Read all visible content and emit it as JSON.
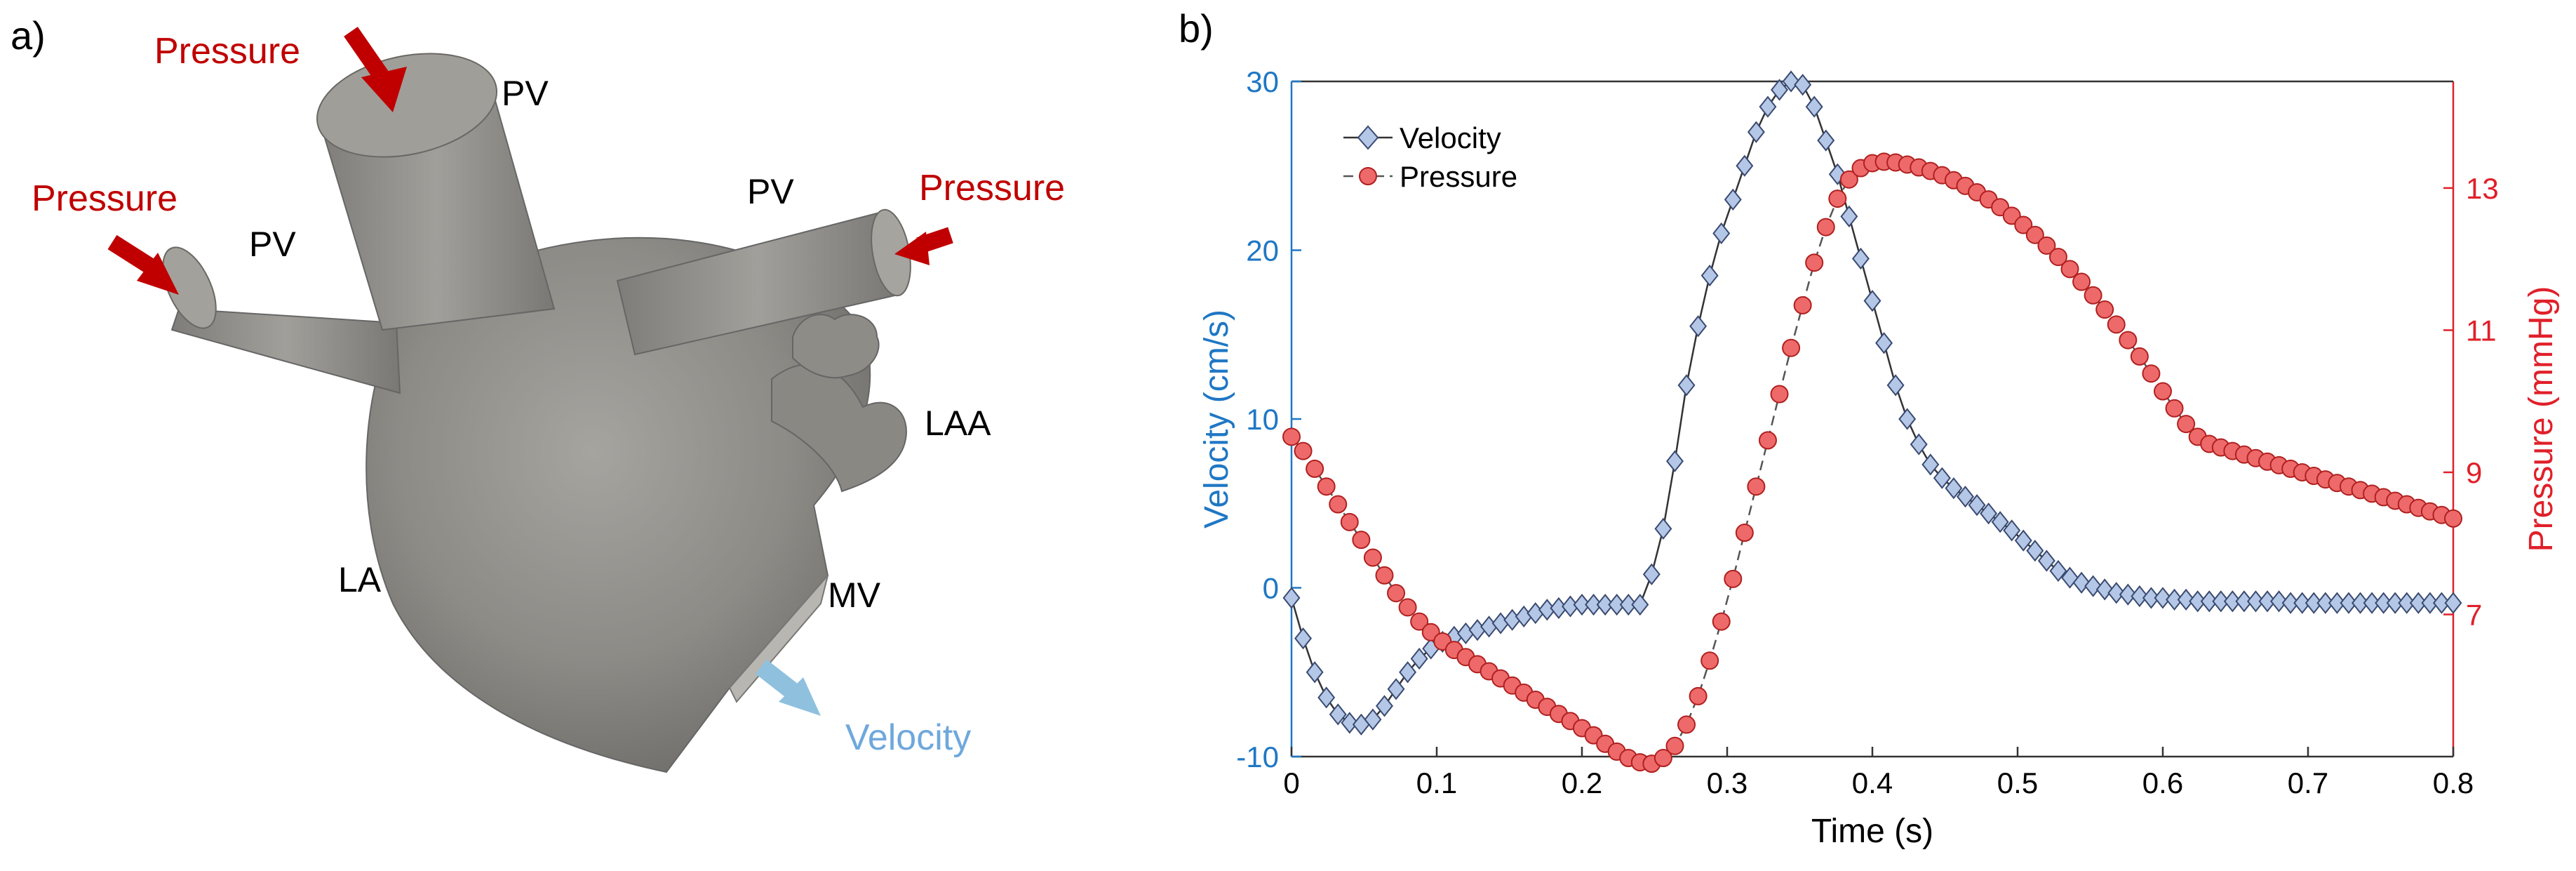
{
  "panels": {
    "a": {
      "label": "a)",
      "annotations": {
        "pressure_top": "Pressure",
        "pressure_left": "Pressure",
        "pressure_right": "Pressure",
        "pv_top": "PV",
        "pv_left": "PV",
        "pv_right": "PV",
        "laa": "LAA",
        "la": "LA",
        "mv": "MV",
        "velocity": "Velocity"
      }
    },
    "b": {
      "label": "b)"
    }
  },
  "colors": {
    "pressure_annotation": "#c00000",
    "velocity_annotation": "#6fa8dc",
    "velocity_axis": "#1f77c4",
    "pressure_axis": "#e0202a",
    "velocity_marker_fill": "#b4c7e7",
    "velocity_marker_stroke": "#3a4a70",
    "pressure_marker_fill": "#ee6a6a",
    "pressure_marker_stroke": "#b02020",
    "tissue": "#8c8a85",
    "tissue_light": "#a8a6a1",
    "arrow_red": "#c00000",
    "arrow_blue": "#8fc1de"
  },
  "chart_data": {
    "type": "line",
    "xlabel": "Time (s)",
    "ylabel_left": "Velocity (cm/s)",
    "ylabel_right": "Pressure (mmHg)",
    "xlim": [
      0,
      0.8
    ],
    "ylim_left": [
      -10,
      30
    ],
    "ylim_right": [
      5,
      14.5
    ],
    "x_ticks": [
      "0",
      "0.1",
      "0.2",
      "0.3",
      "0.4",
      "0.5",
      "0.6",
      "0.7",
      "0.8"
    ],
    "y_ticks_left": [
      "-10",
      "0",
      "10",
      "20",
      "30"
    ],
    "y_ticks_right": [
      "7",
      "9",
      "11",
      "13"
    ],
    "legend": {
      "position": "top-left",
      "entries": [
        "Velocity",
        "Pressure"
      ]
    },
    "series": [
      {
        "name": "Velocity",
        "axis": "left",
        "marker": "diamond",
        "line": "solid",
        "x": [
          0.0,
          0.008,
          0.016,
          0.024,
          0.032,
          0.04,
          0.048,
          0.056,
          0.064,
          0.072,
          0.08,
          0.088,
          0.096,
          0.104,
          0.112,
          0.12,
          0.128,
          0.136,
          0.144,
          0.152,
          0.16,
          0.168,
          0.176,
          0.184,
          0.192,
          0.2,
          0.208,
          0.216,
          0.224,
          0.232,
          0.24,
          0.248,
          0.256,
          0.264,
          0.272,
          0.28,
          0.288,
          0.296,
          0.304,
          0.312,
          0.32,
          0.328,
          0.336,
          0.344,
          0.352,
          0.36,
          0.368,
          0.376,
          0.384,
          0.392,
          0.4,
          0.408,
          0.416,
          0.424,
          0.432,
          0.44,
          0.448,
          0.456,
          0.464,
          0.472,
          0.48,
          0.488,
          0.496,
          0.504,
          0.512,
          0.52,
          0.528,
          0.536,
          0.544,
          0.552,
          0.56,
          0.568,
          0.576,
          0.584,
          0.592,
          0.6,
          0.608,
          0.616,
          0.624,
          0.632,
          0.64,
          0.648,
          0.656,
          0.664,
          0.672,
          0.68,
          0.688,
          0.696,
          0.704,
          0.712,
          0.72,
          0.728,
          0.736,
          0.744,
          0.752,
          0.76,
          0.768,
          0.776,
          0.784,
          0.792,
          0.8
        ],
        "y": [
          -0.6,
          -3.0,
          -5.0,
          -6.5,
          -7.5,
          -8.0,
          -8.1,
          -7.8,
          -7.0,
          -6.0,
          -5.0,
          -4.2,
          -3.6,
          -3.2,
          -2.9,
          -2.7,
          -2.5,
          -2.3,
          -2.1,
          -1.9,
          -1.7,
          -1.5,
          -1.3,
          -1.2,
          -1.1,
          -1.0,
          -1.0,
          -1.0,
          -1.0,
          -1.0,
          -1.0,
          0.8,
          3.5,
          7.5,
          12.0,
          15.5,
          18.5,
          21.0,
          23.0,
          25.0,
          27.0,
          28.5,
          29.5,
          30.0,
          29.8,
          28.5,
          26.5,
          24.5,
          22.0,
          19.5,
          17.0,
          14.5,
          12.0,
          10.0,
          8.5,
          7.3,
          6.5,
          5.9,
          5.4,
          4.9,
          4.4,
          3.9,
          3.4,
          2.8,
          2.2,
          1.6,
          1.0,
          0.6,
          0.3,
          0.1,
          -0.1,
          -0.3,
          -0.4,
          -0.5,
          -0.6,
          -0.6,
          -0.7,
          -0.7,
          -0.8,
          -0.8,
          -0.8,
          -0.8,
          -0.8,
          -0.8,
          -0.8,
          -0.8,
          -0.9,
          -0.9,
          -0.9,
          -0.9,
          -0.9,
          -0.9,
          -0.9,
          -0.9,
          -0.9,
          -0.9,
          -0.9,
          -0.9,
          -0.9,
          -0.9,
          -0.9
        ]
      },
      {
        "name": "Pressure",
        "axis": "right",
        "marker": "circle",
        "line": "dashed",
        "x": [
          0.0,
          0.008,
          0.016,
          0.024,
          0.032,
          0.04,
          0.048,
          0.056,
          0.064,
          0.072,
          0.08,
          0.088,
          0.096,
          0.104,
          0.112,
          0.12,
          0.128,
          0.136,
          0.144,
          0.152,
          0.16,
          0.168,
          0.176,
          0.184,
          0.192,
          0.2,
          0.208,
          0.216,
          0.224,
          0.232,
          0.24,
          0.248,
          0.256,
          0.264,
          0.272,
          0.28,
          0.288,
          0.296,
          0.304,
          0.312,
          0.32,
          0.328,
          0.336,
          0.344,
          0.352,
          0.36,
          0.368,
          0.376,
          0.384,
          0.392,
          0.4,
          0.408,
          0.416,
          0.424,
          0.432,
          0.44,
          0.448,
          0.456,
          0.464,
          0.472,
          0.48,
          0.488,
          0.496,
          0.504,
          0.512,
          0.52,
          0.528,
          0.536,
          0.544,
          0.552,
          0.56,
          0.568,
          0.576,
          0.584,
          0.592,
          0.6,
          0.608,
          0.616,
          0.624,
          0.632,
          0.64,
          0.648,
          0.656,
          0.664,
          0.672,
          0.68,
          0.688,
          0.696,
          0.704,
          0.712,
          0.72,
          0.728,
          0.736,
          0.744,
          0.752,
          0.76,
          0.768,
          0.776,
          0.784,
          0.792,
          0.8
        ],
        "y": [
          9.5,
          9.3,
          9.05,
          8.8,
          8.55,
          8.3,
          8.05,
          7.8,
          7.55,
          7.3,
          7.1,
          6.9,
          6.75,
          6.62,
          6.5,
          6.4,
          6.3,
          6.2,
          6.1,
          6.0,
          5.9,
          5.8,
          5.7,
          5.6,
          5.5,
          5.4,
          5.3,
          5.18,
          5.07,
          4.98,
          4.92,
          4.9,
          4.98,
          5.15,
          5.45,
          5.85,
          6.35,
          6.9,
          7.5,
          8.15,
          8.8,
          9.45,
          10.1,
          10.75,
          11.35,
          11.95,
          12.45,
          12.85,
          13.12,
          13.28,
          13.35,
          13.37,
          13.36,
          13.33,
          13.29,
          13.24,
          13.18,
          13.11,
          13.03,
          12.94,
          12.84,
          12.73,
          12.61,
          12.48,
          12.34,
          12.19,
          12.03,
          11.86,
          11.68,
          11.49,
          11.29,
          11.08,
          10.86,
          10.63,
          10.39,
          10.14,
          9.9,
          9.68,
          9.5,
          9.4,
          9.35,
          9.3,
          9.25,
          9.2,
          9.15,
          9.1,
          9.05,
          9.0,
          8.95,
          8.9,
          8.85,
          8.8,
          8.75,
          8.7,
          8.65,
          8.6,
          8.55,
          8.5,
          8.45,
          8.4,
          8.35
        ]
      }
    ]
  }
}
